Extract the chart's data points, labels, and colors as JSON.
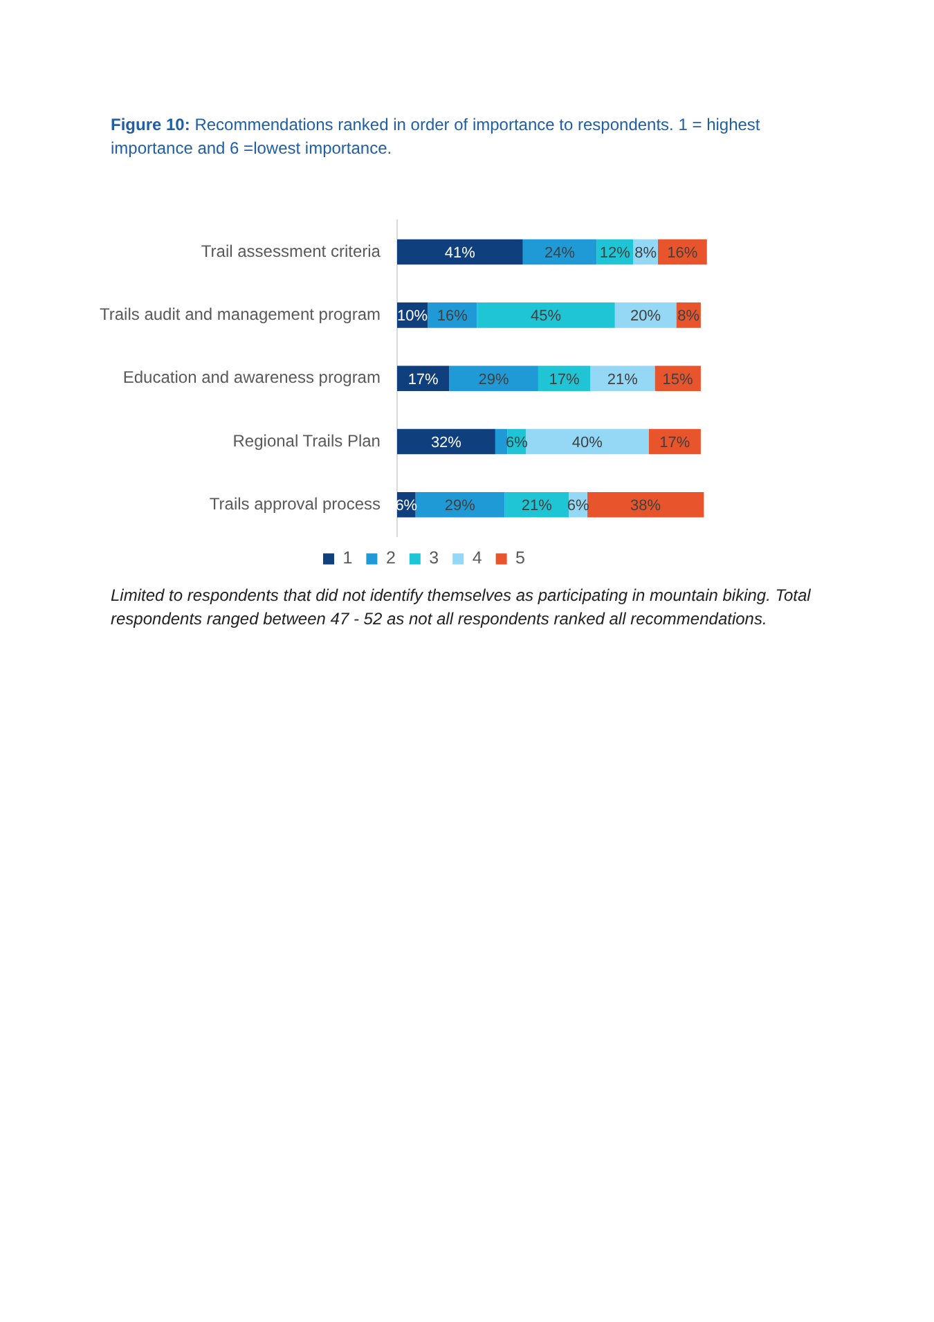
{
  "chart_data": {
    "type": "bar",
    "orientation": "horizontal",
    "stacked": true,
    "title": "Figure 10: Recommendations ranked in order of importance to respondents. 1 = highest importance and 6 =lowest importance.",
    "annotations": [
      "Limited to respondents that did not identify themselves as participating in mountain biking. Total respondents ranged between 47 - 52 as not all respondents ranked all recommendations."
    ],
    "categories": [
      "Trail assessment criteria",
      "Trails audit and management program",
      "Education and awareness program",
      "Regional Trails Plan",
      "Trails approval process"
    ],
    "series": [
      {
        "name": "1",
        "color": "#0f3f7c",
        "values": [
          41,
          10,
          17,
          32,
          6
        ],
        "value_labels": [
          "41%",
          "10%",
          "17%",
          "32%",
          "6%"
        ]
      },
      {
        "name": "2",
        "color": "#1f9ad6",
        "values": [
          24,
          16,
          29,
          4,
          29
        ],
        "value_labels": [
          "24%",
          "16%",
          "29%",
          null,
          "29%"
        ]
      },
      {
        "name": "3",
        "color": "#20c5d5",
        "values": [
          12,
          45,
          17,
          6,
          21
        ],
        "value_labels": [
          "12%",
          "45%",
          "17%",
          "6%",
          "21%"
        ]
      },
      {
        "name": "4",
        "color": "#95d8f5",
        "values": [
          8,
          20,
          21,
          40,
          6
        ],
        "value_labels": [
          "8%",
          "20%",
          "21%",
          "40%",
          "6%"
        ]
      },
      {
        "name": "5",
        "color": "#e8542c",
        "values": [
          16,
          8,
          15,
          17,
          38
        ],
        "value_labels": [
          "16%",
          "8%",
          "15%",
          "17%",
          "38%"
        ]
      }
    ],
    "legend": "bottom"
  }
}
